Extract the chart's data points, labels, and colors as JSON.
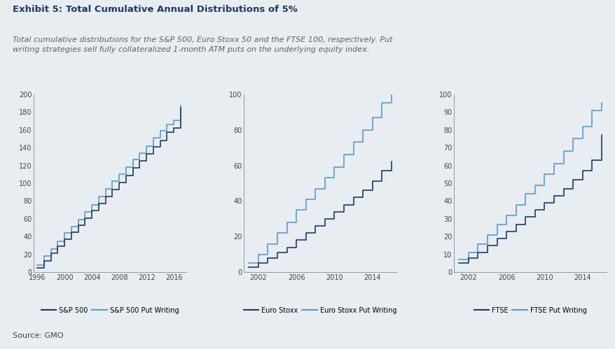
{
  "title": "Exhibit 5: Total Cumulative Annual Distributions of 5%",
  "subtitle": "Total cumulative distributions for the S&P 500, Euro Stoxx 50 and the FTSE 100, respectively. Put\nwriting strategies sell fully collateralized 1-month ATM puts on the underlying equity index.",
  "source": "Source: GMO",
  "background_color": "#e8edf2",
  "plot_bg": "#e8edf2",
  "title_color": "#1f3864",
  "subtitle_color": "#606060",
  "chart1": {
    "years": [
      1996,
      1997,
      1998,
      1999,
      2000,
      2001,
      2002,
      2003,
      2004,
      2005,
      2006,
      2007,
      2008,
      2009,
      2010,
      2011,
      2012,
      2013,
      2014,
      2015,
      2016,
      2017
    ],
    "sp500": [
      5,
      13,
      21,
      29,
      37,
      45,
      53,
      61,
      69,
      77,
      85,
      93,
      101,
      109,
      117,
      125,
      133,
      141,
      148,
      157,
      162,
      185
    ],
    "sp500_put": [
      8,
      18,
      26,
      35,
      44,
      51,
      59,
      68,
      76,
      85,
      94,
      102,
      110,
      118,
      127,
      134,
      142,
      151,
      159,
      166,
      171,
      187
    ],
    "xlim": [
      1995.5,
      2017.8
    ],
    "ylim": [
      0,
      200
    ],
    "yticks": [
      0,
      20,
      40,
      60,
      80,
      100,
      120,
      140,
      160,
      180,
      200
    ],
    "xticks": [
      1996,
      2000,
      2004,
      2008,
      2012,
      2016
    ],
    "legend1": "S&P 500",
    "legend2": "S&P 500 Put Writing",
    "color1": "#1f3864",
    "color2": "#5b9bd5"
  },
  "chart2": {
    "years": [
      2001,
      2002,
      2003,
      2004,
      2005,
      2006,
      2007,
      2008,
      2009,
      2010,
      2011,
      2012,
      2013,
      2014,
      2015,
      2016
    ],
    "eurostoxx": [
      3,
      5,
      8,
      11,
      14,
      18,
      22,
      26,
      30,
      34,
      38,
      42,
      46,
      51,
      57,
      62
    ],
    "eurostoxx_put": [
      5,
      10,
      16,
      22,
      28,
      35,
      41,
      47,
      53,
      59,
      66,
      73,
      80,
      87,
      95,
      103
    ],
    "xlim": [
      2000.5,
      2016.5
    ],
    "ylim": [
      0,
      100
    ],
    "yticks": [
      0,
      20,
      40,
      60,
      80,
      100
    ],
    "xticks": [
      2002,
      2006,
      2010,
      2014
    ],
    "legend1": "Euro Stoxx",
    "legend2": "Euro Stoxx Put Writing",
    "color1": "#1f3864",
    "color2": "#5b9bd5"
  },
  "chart3": {
    "years": [
      2001,
      2002,
      2003,
      2004,
      2005,
      2006,
      2007,
      2008,
      2009,
      2010,
      2011,
      2012,
      2013,
      2014,
      2015,
      2016
    ],
    "ftse": [
      5,
      8,
      11,
      15,
      19,
      23,
      27,
      31,
      35,
      39,
      43,
      47,
      52,
      57,
      63,
      77
    ],
    "ftse_put": [
      7,
      11,
      16,
      21,
      27,
      32,
      38,
      44,
      49,
      55,
      61,
      68,
      75,
      82,
      91,
      95
    ],
    "xlim": [
      2000.5,
      2016.5
    ],
    "ylim": [
      0,
      100
    ],
    "yticks": [
      0,
      10,
      20,
      30,
      40,
      50,
      60,
      70,
      80,
      90,
      100
    ],
    "xticks": [
      2002,
      2006,
      2010,
      2014
    ],
    "legend1": "FTSE",
    "legend2": "FTSE Put Writing",
    "color1": "#1f3864",
    "color2": "#5b9bd5"
  }
}
